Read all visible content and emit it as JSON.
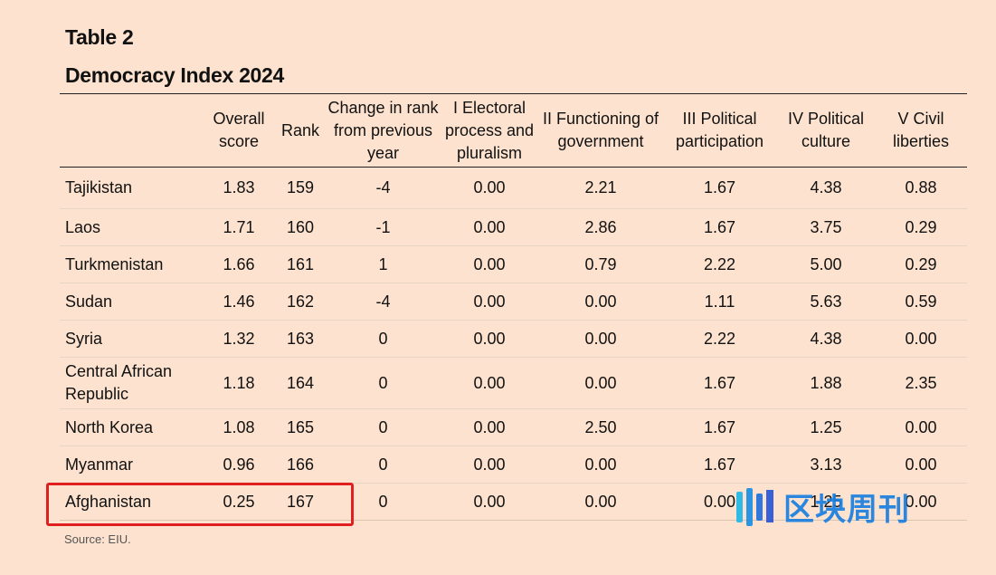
{
  "header": {
    "table_label": "Table 2",
    "title": "Democracy Index 2024"
  },
  "table": {
    "columns": [
      "",
      "Overall score",
      "Rank",
      "Change in rank from previous year",
      "I Electoral process and pluralism",
      "II Functioning of government",
      "III Political participation",
      "IV Political culture",
      "V Civil liberties"
    ],
    "rows": [
      [
        "Tajikistan",
        "1.83",
        "159",
        "-4",
        "0.00",
        "2.21",
        "1.67",
        "4.38",
        "0.88"
      ],
      [
        "Laos",
        "1.71",
        "160",
        "-1",
        "0.00",
        "2.86",
        "1.67",
        "3.75",
        "0.29"
      ],
      [
        "Turkmenistan",
        "1.66",
        "161",
        "1",
        "0.00",
        "0.79",
        "2.22",
        "5.00",
        "0.29"
      ],
      [
        "Sudan",
        "1.46",
        "162",
        "-4",
        "0.00",
        "0.00",
        "1.11",
        "5.63",
        "0.59"
      ],
      [
        "Syria",
        "1.32",
        "163",
        "0",
        "0.00",
        "0.00",
        "2.22",
        "4.38",
        "0.00"
      ],
      [
        "Central African Republic",
        "1.18",
        "164",
        "0",
        "0.00",
        "0.00",
        "1.67",
        "1.88",
        "2.35"
      ],
      [
        "North Korea",
        "1.08",
        "165",
        "0",
        "0.00",
        "2.50",
        "1.67",
        "1.25",
        "0.00"
      ],
      [
        "Myanmar",
        "0.96",
        "166",
        "0",
        "0.00",
        "0.00",
        "1.67",
        "3.13",
        "0.00"
      ],
      [
        "Afghanistan",
        "0.25",
        "167",
        "0",
        "0.00",
        "0.00",
        "0.00",
        "1.25",
        "0.00"
      ]
    ]
  },
  "footer": {
    "source": "Source: EIU."
  },
  "watermark": {
    "text": "区块周刊"
  },
  "colors": {
    "background": "#fde3cf",
    "highlight": "#e02020",
    "watermark": "#1a7fe0"
  }
}
